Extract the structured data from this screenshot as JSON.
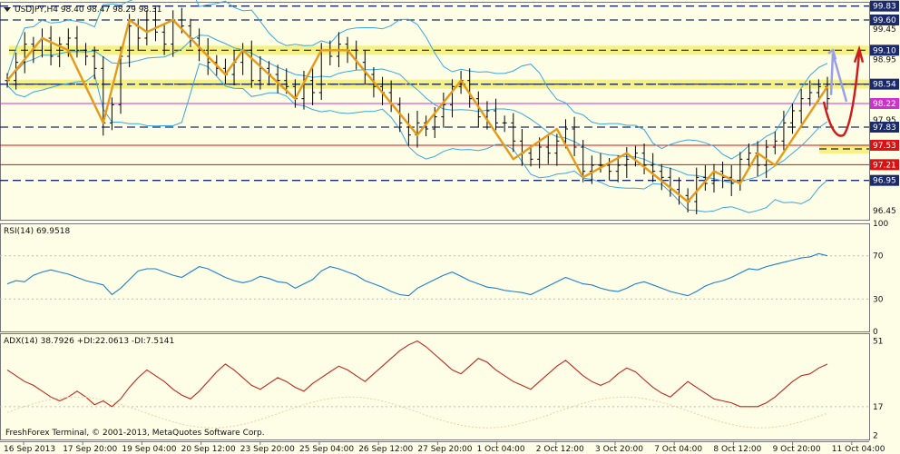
{
  "chart_data": [
    {
      "type": "candlestick",
      "header": "USDJPY,H4  98.40 98.47 98.29 98.31",
      "symbol": "USDJPY,H4",
      "ohlc": [
        98.4,
        98.47,
        98.29,
        98.31
      ],
      "ylim": [
        96.3,
        99.9
      ],
      "y_ticks": [
        99.83,
        99.6,
        99.45,
        99.1,
        98.95,
        98.54,
        98.22,
        97.95,
        97.83,
        97.53,
        97.21,
        96.95,
        96.45
      ],
      "price_tags": [
        {
          "label": "99.83",
          "value": 99.83,
          "color": "#1a2a6c"
        },
        {
          "label": "99.60",
          "value": 99.6,
          "color": "#1a2a6c"
        },
        {
          "label": "99.10",
          "value": 99.1,
          "color": "#1a2a6c"
        },
        {
          "label": "98.54",
          "value": 98.54,
          "color": "#1a2a6c"
        },
        {
          "label": "98.22",
          "value": 98.22,
          "color": "#d030d0"
        },
        {
          "label": "97.83",
          "value": 97.83,
          "color": "#1a2a6c"
        },
        {
          "label": "97.53",
          "value": 97.53,
          "color": "#dd1111"
        },
        {
          "label": "97.21",
          "value": 97.21,
          "color": "#dd1111"
        },
        {
          "label": "96.95",
          "value": 96.95,
          "color": "#1a2a6c"
        }
      ],
      "dashed_levels": [
        99.83,
        99.6,
        98.54,
        97.83,
        96.95
      ],
      "yellow_zones": [
        {
          "value": 99.1,
          "label": "99.10"
        },
        {
          "value": 98.54,
          "label": "98.54"
        },
        {
          "value": 97.47,
          "label": ""
        }
      ],
      "red_levels": [
        97.53,
        97.21
      ],
      "magenta_level": 98.22,
      "close": [
        98.6,
        98.9,
        99.2,
        99.1,
        99.3,
        99.0,
        99.2,
        99.3,
        99.1,
        99.0,
        98.8,
        97.9,
        98.2,
        99.0,
        99.5,
        99.3,
        99.6,
        99.4,
        99.2,
        99.6,
        99.5,
        99.3,
        99.1,
        98.9,
        98.8,
        98.7,
        98.9,
        99.1,
        98.6,
        98.8,
        98.7,
        98.6,
        98.5,
        98.3,
        98.6,
        98.4,
        99.1,
        99.0,
        99.2,
        99.1,
        98.9,
        98.7,
        98.5,
        98.4,
        98.2,
        97.9,
        97.7,
        97.9,
        97.8,
        98.0,
        98.2,
        98.5,
        98.6,
        98.3,
        98.0,
        98.1,
        97.9,
        97.9,
        97.6,
        97.4,
        97.3,
        97.5,
        97.4,
        97.6,
        97.8,
        97.5,
        97.1,
        97.2,
        97.2,
        97.1,
        97.2,
        97.3,
        97.4,
        97.2,
        97.1,
        97.0,
        96.8,
        96.7,
        96.6,
        97.0,
        96.9,
        97.1,
        97.0,
        96.9,
        97.3,
        97.4,
        97.2,
        97.5,
        97.6,
        97.9,
        98.1,
        98.3,
        98.4,
        98.5,
        98.3
      ],
      "zigzag": [
        [
          0,
          98.6
        ],
        [
          4,
          99.3
        ],
        [
          7,
          99.1
        ],
        [
          11,
          97.9
        ],
        [
          14,
          99.6
        ],
        [
          16,
          99.4
        ],
        [
          19,
          99.6
        ],
        [
          25,
          98.7
        ],
        [
          27,
          99.1
        ],
        [
          33,
          98.3
        ],
        [
          36,
          99.1
        ],
        [
          39,
          99.1
        ],
        [
          47,
          97.7
        ],
        [
          52,
          98.6
        ],
        [
          58,
          97.3
        ],
        [
          63,
          97.8
        ],
        [
          66,
          97.0
        ],
        [
          71,
          97.4
        ],
        [
          78,
          96.6
        ],
        [
          81,
          97.1
        ],
        [
          84,
          96.9
        ],
        [
          86,
          97.4
        ],
        [
          88,
          97.2
        ],
        [
          94,
          98.5
        ]
      ],
      "x_labels": [
        "16 Sep 2013",
        "17 Sep 20:00",
        "19 Sep 04:00",
        "20 Sep 12:00",
        "23 Sep 20:00",
        "25 Sep 04:00",
        "26 Sep 12:00",
        "27 Sep 20:00",
        "1 Oct 04:00",
        "2 Oct 12:00",
        "3 Oct 20:00",
        "7 Oct 04:00",
        "8 Oct 12:00",
        "9 Oct 20:00",
        "11 Oct 04:00"
      ]
    },
    {
      "type": "line",
      "title": "RSI(14) 69.9518",
      "ylim": [
        0,
        100
      ],
      "y_ticks": [
        100,
        70,
        30,
        0
      ],
      "levels": [
        70,
        30
      ],
      "values": [
        44,
        47,
        46,
        52,
        55,
        57,
        55,
        53,
        50,
        47,
        45,
        43,
        34,
        40,
        48,
        56,
        58,
        58,
        55,
        52,
        50,
        55,
        60,
        58,
        54,
        50,
        47,
        45,
        47,
        51,
        49,
        46,
        45,
        40,
        44,
        48,
        56,
        60,
        58,
        55,
        52,
        47,
        44,
        41,
        37,
        34,
        33,
        40,
        44,
        48,
        52,
        55,
        51,
        47,
        44,
        41,
        40,
        38,
        37,
        36,
        34,
        38,
        42,
        46,
        50,
        47,
        44,
        43,
        40,
        38,
        37,
        40,
        44,
        46,
        43,
        40,
        37,
        35,
        33,
        37,
        42,
        45,
        47,
        50,
        54,
        58,
        57,
        60,
        62,
        64,
        66,
        68,
        69,
        72,
        70
      ]
    },
    {
      "type": "line",
      "title": "ADX(14) 38.7926 +DI:22.0613 -DI:7.5141",
      "ylim": [
        0,
        55
      ],
      "y_ticks": [
        51,
        17,
        2
      ],
      "levels": [
        17
      ],
      "values": [
        36,
        33,
        30,
        28,
        25,
        22,
        20,
        22,
        25,
        22,
        18,
        20,
        17,
        21,
        27,
        32,
        36,
        33,
        30,
        26,
        23,
        21,
        25,
        30,
        35,
        39,
        36,
        32,
        28,
        26,
        29,
        32,
        30,
        27,
        25,
        29,
        32,
        35,
        38,
        36,
        33,
        30,
        34,
        38,
        42,
        46,
        49,
        51,
        48,
        44,
        40,
        36,
        34,
        38,
        42,
        40,
        36,
        33,
        30,
        28,
        26,
        30,
        34,
        38,
        41,
        37,
        33,
        30,
        28,
        30,
        34,
        37,
        35,
        31,
        27,
        24,
        22,
        26,
        30,
        27,
        24,
        21,
        20,
        19,
        17,
        17,
        17,
        19,
        22,
        26,
        30,
        33,
        34,
        37,
        39
      ]
    }
  ],
  "watermark": "FreshForex Terminal, © 2001-2013, MetaQuotes Software Corp."
}
